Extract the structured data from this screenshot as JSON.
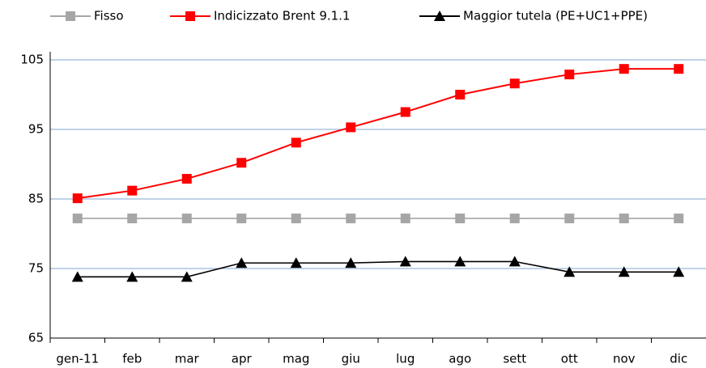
{
  "chart_data": {
    "type": "line",
    "categories": [
      "gen-11",
      "feb",
      "mar",
      "apr",
      "mag",
      "giu",
      "lug",
      "ago",
      "sett",
      "ott",
      "nov",
      "dic"
    ],
    "series": [
      {
        "name": "Fisso",
        "color": "#a6a6a6",
        "marker": "square",
        "values": [
          82.2,
          82.2,
          82.2,
          82.2,
          82.2,
          82.2,
          82.2,
          82.2,
          82.2,
          82.2,
          82.2,
          82.2
        ]
      },
      {
        "name": "Indicizzato Brent 9.1.1",
        "color": "#ff0000",
        "marker": "square",
        "values": [
          85.1,
          86.2,
          87.9,
          90.2,
          93.1,
          95.3,
          97.5,
          100.0,
          101.6,
          102.9,
          103.7,
          103.7
        ]
      },
      {
        "name": "Maggior tutela (PE+UC1+PPE)",
        "color": "#000000",
        "marker": "triangle",
        "values": [
          73.8,
          73.8,
          73.8,
          75.8,
          75.8,
          75.8,
          76.0,
          76.0,
          76.0,
          74.5,
          74.5,
          74.5
        ]
      }
    ],
    "ylim": [
      65,
      105
    ],
    "yticks": [
      65,
      75,
      85,
      95,
      105
    ],
    "grid": true,
    "grid_color": "#9bb7d9",
    "legend": "top"
  }
}
